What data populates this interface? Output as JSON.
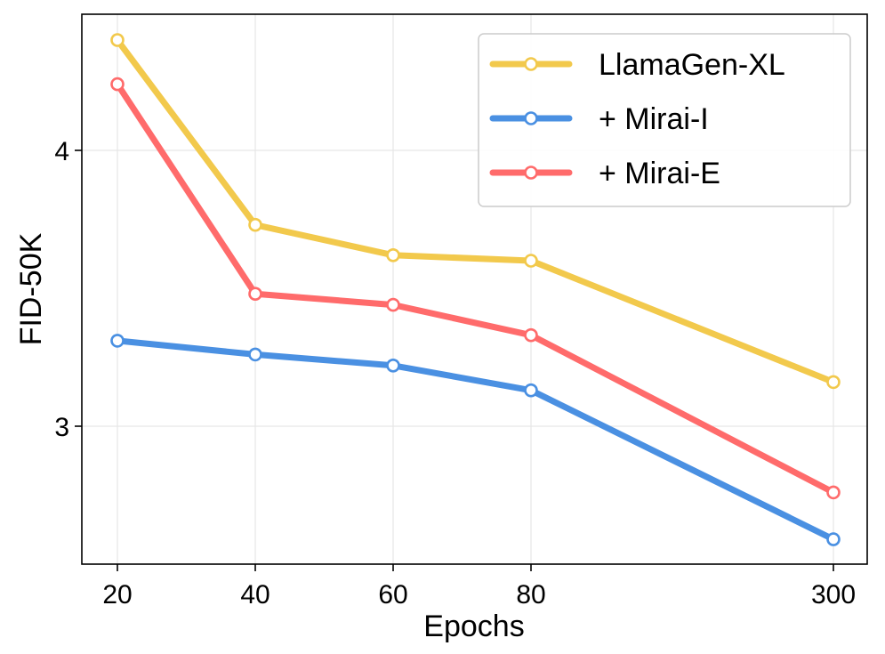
{
  "chart_data": {
    "type": "line",
    "title": "",
    "xlabel": "Epochs",
    "ylabel": "FID-50K",
    "categories": [
      "20",
      "40",
      "60",
      "80",
      "300"
    ],
    "x": [
      20,
      40,
      60,
      80,
      300
    ],
    "yticks": [
      3,
      4
    ],
    "ytick_labels": [
      "3",
      "4"
    ],
    "ylim": [
      2.5,
      4.5
    ],
    "grid": true,
    "legend_position": "top-right",
    "series": [
      {
        "name": "LlamaGen-XL",
        "color": "#f2c94c",
        "values": [
          4.4,
          3.73,
          3.62,
          3.6,
          3.16
        ]
      },
      {
        "name": "+ Mirai-I",
        "color": "#4a90e2",
        "values": [
          3.31,
          3.26,
          3.22,
          3.13,
          2.59
        ]
      },
      {
        "name": "+ Mirai-E",
        "color": "#ff6b6b",
        "values": [
          4.24,
          3.48,
          3.44,
          3.33,
          2.76
        ]
      }
    ]
  }
}
